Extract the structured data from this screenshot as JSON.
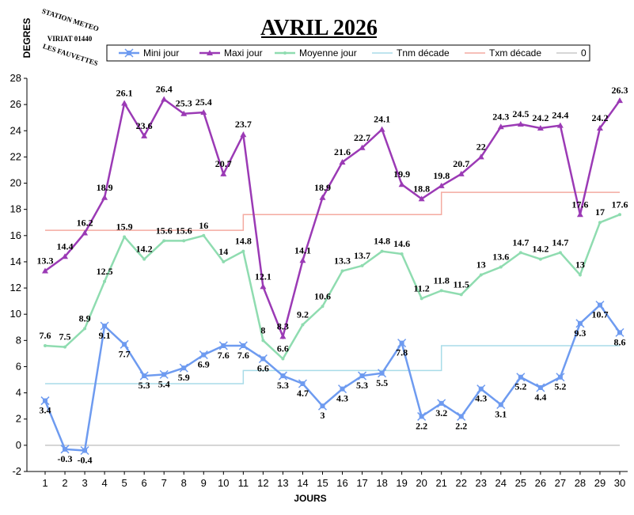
{
  "chart_data": {
    "type": "line",
    "title": "AVRIL 2026",
    "xlabel": "JOURS",
    "ylabel": "DEGRES",
    "stamp": [
      "STATION METEO",
      "VIRIAT 01440",
      "LES FAUVETTES"
    ],
    "x": [
      1,
      2,
      3,
      4,
      5,
      6,
      7,
      8,
      9,
      10,
      11,
      12,
      13,
      14,
      15,
      16,
      17,
      18,
      19,
      20,
      21,
      22,
      23,
      24,
      25,
      26,
      27,
      28,
      29,
      30
    ],
    "xlim": [
      1,
      30
    ],
    "ylim": [
      -2,
      28
    ],
    "yticks": [
      -2,
      0,
      2,
      4,
      6,
      8,
      10,
      12,
      14,
      16,
      18,
      20,
      22,
      24,
      26,
      28
    ],
    "grid": "none",
    "legend_position": "top",
    "series": [
      {
        "name": "Mini jour",
        "color": "#6e9bf0",
        "marker": "asterisk",
        "labels": true,
        "values": [
          3.4,
          -0.3,
          -0.4,
          9.1,
          7.7,
          5.3,
          5.4,
          5.9,
          6.9,
          7.6,
          7.6,
          6.6,
          5.3,
          4.7,
          3,
          4.3,
          5.3,
          5.5,
          7.8,
          2.2,
          3.2,
          2.2,
          4.3,
          3.1,
          5.2,
          4.4,
          5.2,
          9.3,
          10.7,
          8.6
        ]
      },
      {
        "name": "Maxi jour",
        "color": "#9b3ab5",
        "marker": "triangle",
        "labels": true,
        "values": [
          13.3,
          14.4,
          16.2,
          18.9,
          26.1,
          23.6,
          26.4,
          25.3,
          25.4,
          20.7,
          23.7,
          12.1,
          8.3,
          14.1,
          18.9,
          21.6,
          22.7,
          24.1,
          19.9,
          18.8,
          19.8,
          20.7,
          22,
          24.3,
          24.5,
          24.2,
          24.4,
          17.6,
          24.2,
          26.3
        ]
      },
      {
        "name": "Moyenne jour",
        "color": "#8fdcb0",
        "marker": "dot",
        "labels": true,
        "values": [
          7.6,
          7.5,
          8.9,
          12.5,
          15.9,
          14.2,
          15.6,
          15.6,
          16,
          14,
          14.8,
          8,
          6.6,
          9.2,
          10.6,
          13.3,
          13.7,
          14.8,
          14.6,
          11.2,
          11.8,
          11.5,
          13,
          13.6,
          14.7,
          14.2,
          14.7,
          13,
          17,
          17.6
        ]
      },
      {
        "name": "Tnm décade",
        "color": "#a8dce8",
        "marker": "none",
        "labels": false,
        "values": [
          4.7,
          4.7,
          4.7,
          4.7,
          4.7,
          4.7,
          4.7,
          4.7,
          4.7,
          4.7,
          5.7,
          5.7,
          5.7,
          5.7,
          5.7,
          5.7,
          5.7,
          5.7,
          5.7,
          5.7,
          7.6,
          7.6,
          7.6,
          7.6,
          7.6,
          7.6,
          7.6,
          7.6,
          7.6,
          7.6
        ]
      },
      {
        "name": "Txm décade",
        "color": "#f4aaa0",
        "marker": "none",
        "labels": false,
        "values": [
          16.4,
          16.4,
          16.4,
          16.4,
          16.4,
          16.4,
          16.4,
          16.4,
          16.4,
          16.4,
          17.6,
          17.6,
          17.6,
          17.6,
          17.6,
          17.6,
          17.6,
          17.6,
          17.6,
          17.6,
          19.3,
          19.3,
          19.3,
          19.3,
          19.3,
          19.3,
          19.3,
          19.3,
          19.3,
          19.3
        ]
      },
      {
        "name": "0",
        "color": "#c8c8c8",
        "marker": "none",
        "labels": false,
        "values": [
          0,
          0,
          0,
          0,
          0,
          0,
          0,
          0,
          0,
          0,
          0,
          0,
          0,
          0,
          0,
          0,
          0,
          0,
          0,
          0,
          0,
          0,
          0,
          0,
          0,
          0,
          0,
          0,
          0,
          0
        ]
      }
    ]
  }
}
